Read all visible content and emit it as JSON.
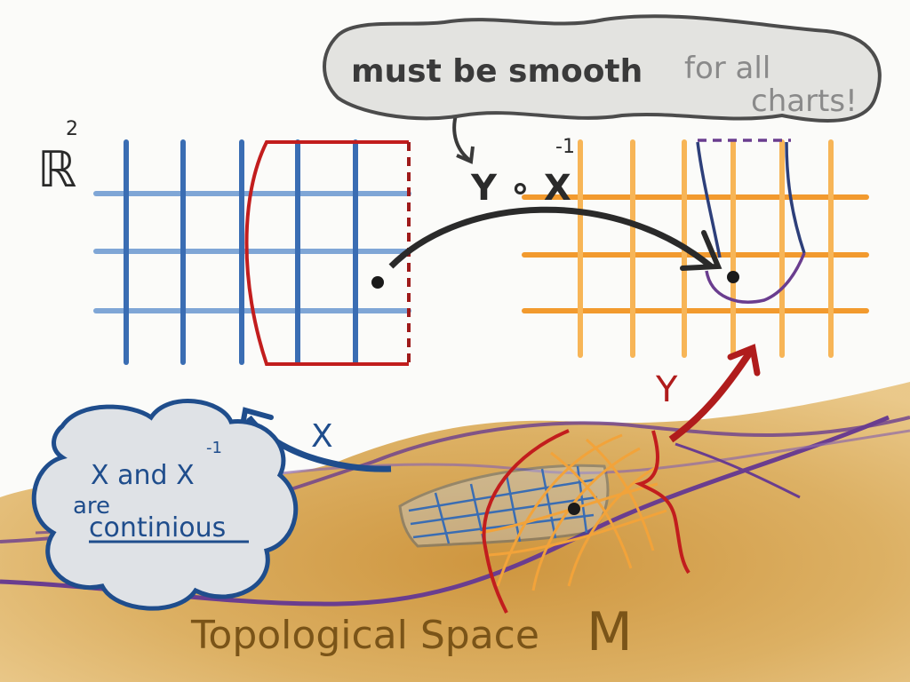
{
  "speech_bubble": {
    "part1": "must be smooth",
    "part2": "for all",
    "part3": "charts!"
  },
  "left_plane": {
    "label": "ℝ",
    "exponent": "2"
  },
  "transition_map": {
    "base": "Y ∘ X",
    "exponent": "-1"
  },
  "chart_x": {
    "label": "X"
  },
  "chart_y": {
    "label": "Y"
  },
  "continuity_bubble": {
    "line1": "X and X",
    "line1_exp": "-1",
    "line2": "are",
    "line3": "continious"
  },
  "manifold": {
    "caption": "Topological Space",
    "symbol": "M"
  },
  "colors": {
    "left_grid": "#3a6db3",
    "left_grid_light": "#7fa6d6",
    "right_grid": "#f2a33a",
    "chart_x_region": "#c21d1d",
    "chart_y_region": "#2d3f7a",
    "manifold_fill": "#d7a24a",
    "manifold_edge": "#6a3d8f",
    "bubble_blue": "#1f4d8c",
    "bubble_grey": "#5a5a5a",
    "text_dark": "#2a2a2a",
    "text_brown": "#7a5418"
  }
}
